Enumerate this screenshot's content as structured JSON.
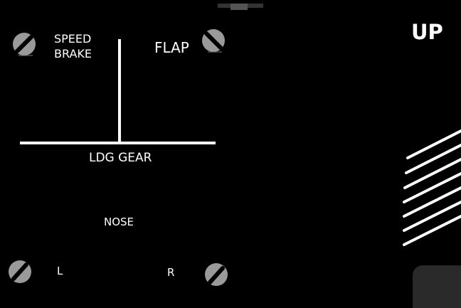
{
  "panel": {
    "speed_brake_label": "SPEED\nBRAKE",
    "flap_label": "FLAP",
    "ldg_gear_label": "LDG GEAR",
    "nose_label": "NOSE",
    "left_label": "L",
    "right_label": "R",
    "gear_position_label": "UP"
  },
  "colors": {
    "background": "#000000",
    "text": "#ffffff",
    "screw": "#9a9a9a",
    "handle": "#2a2a2a"
  },
  "icons": {
    "screws": [
      "screw-icon",
      "screw-icon",
      "screw-icon",
      "screw-icon"
    ]
  }
}
